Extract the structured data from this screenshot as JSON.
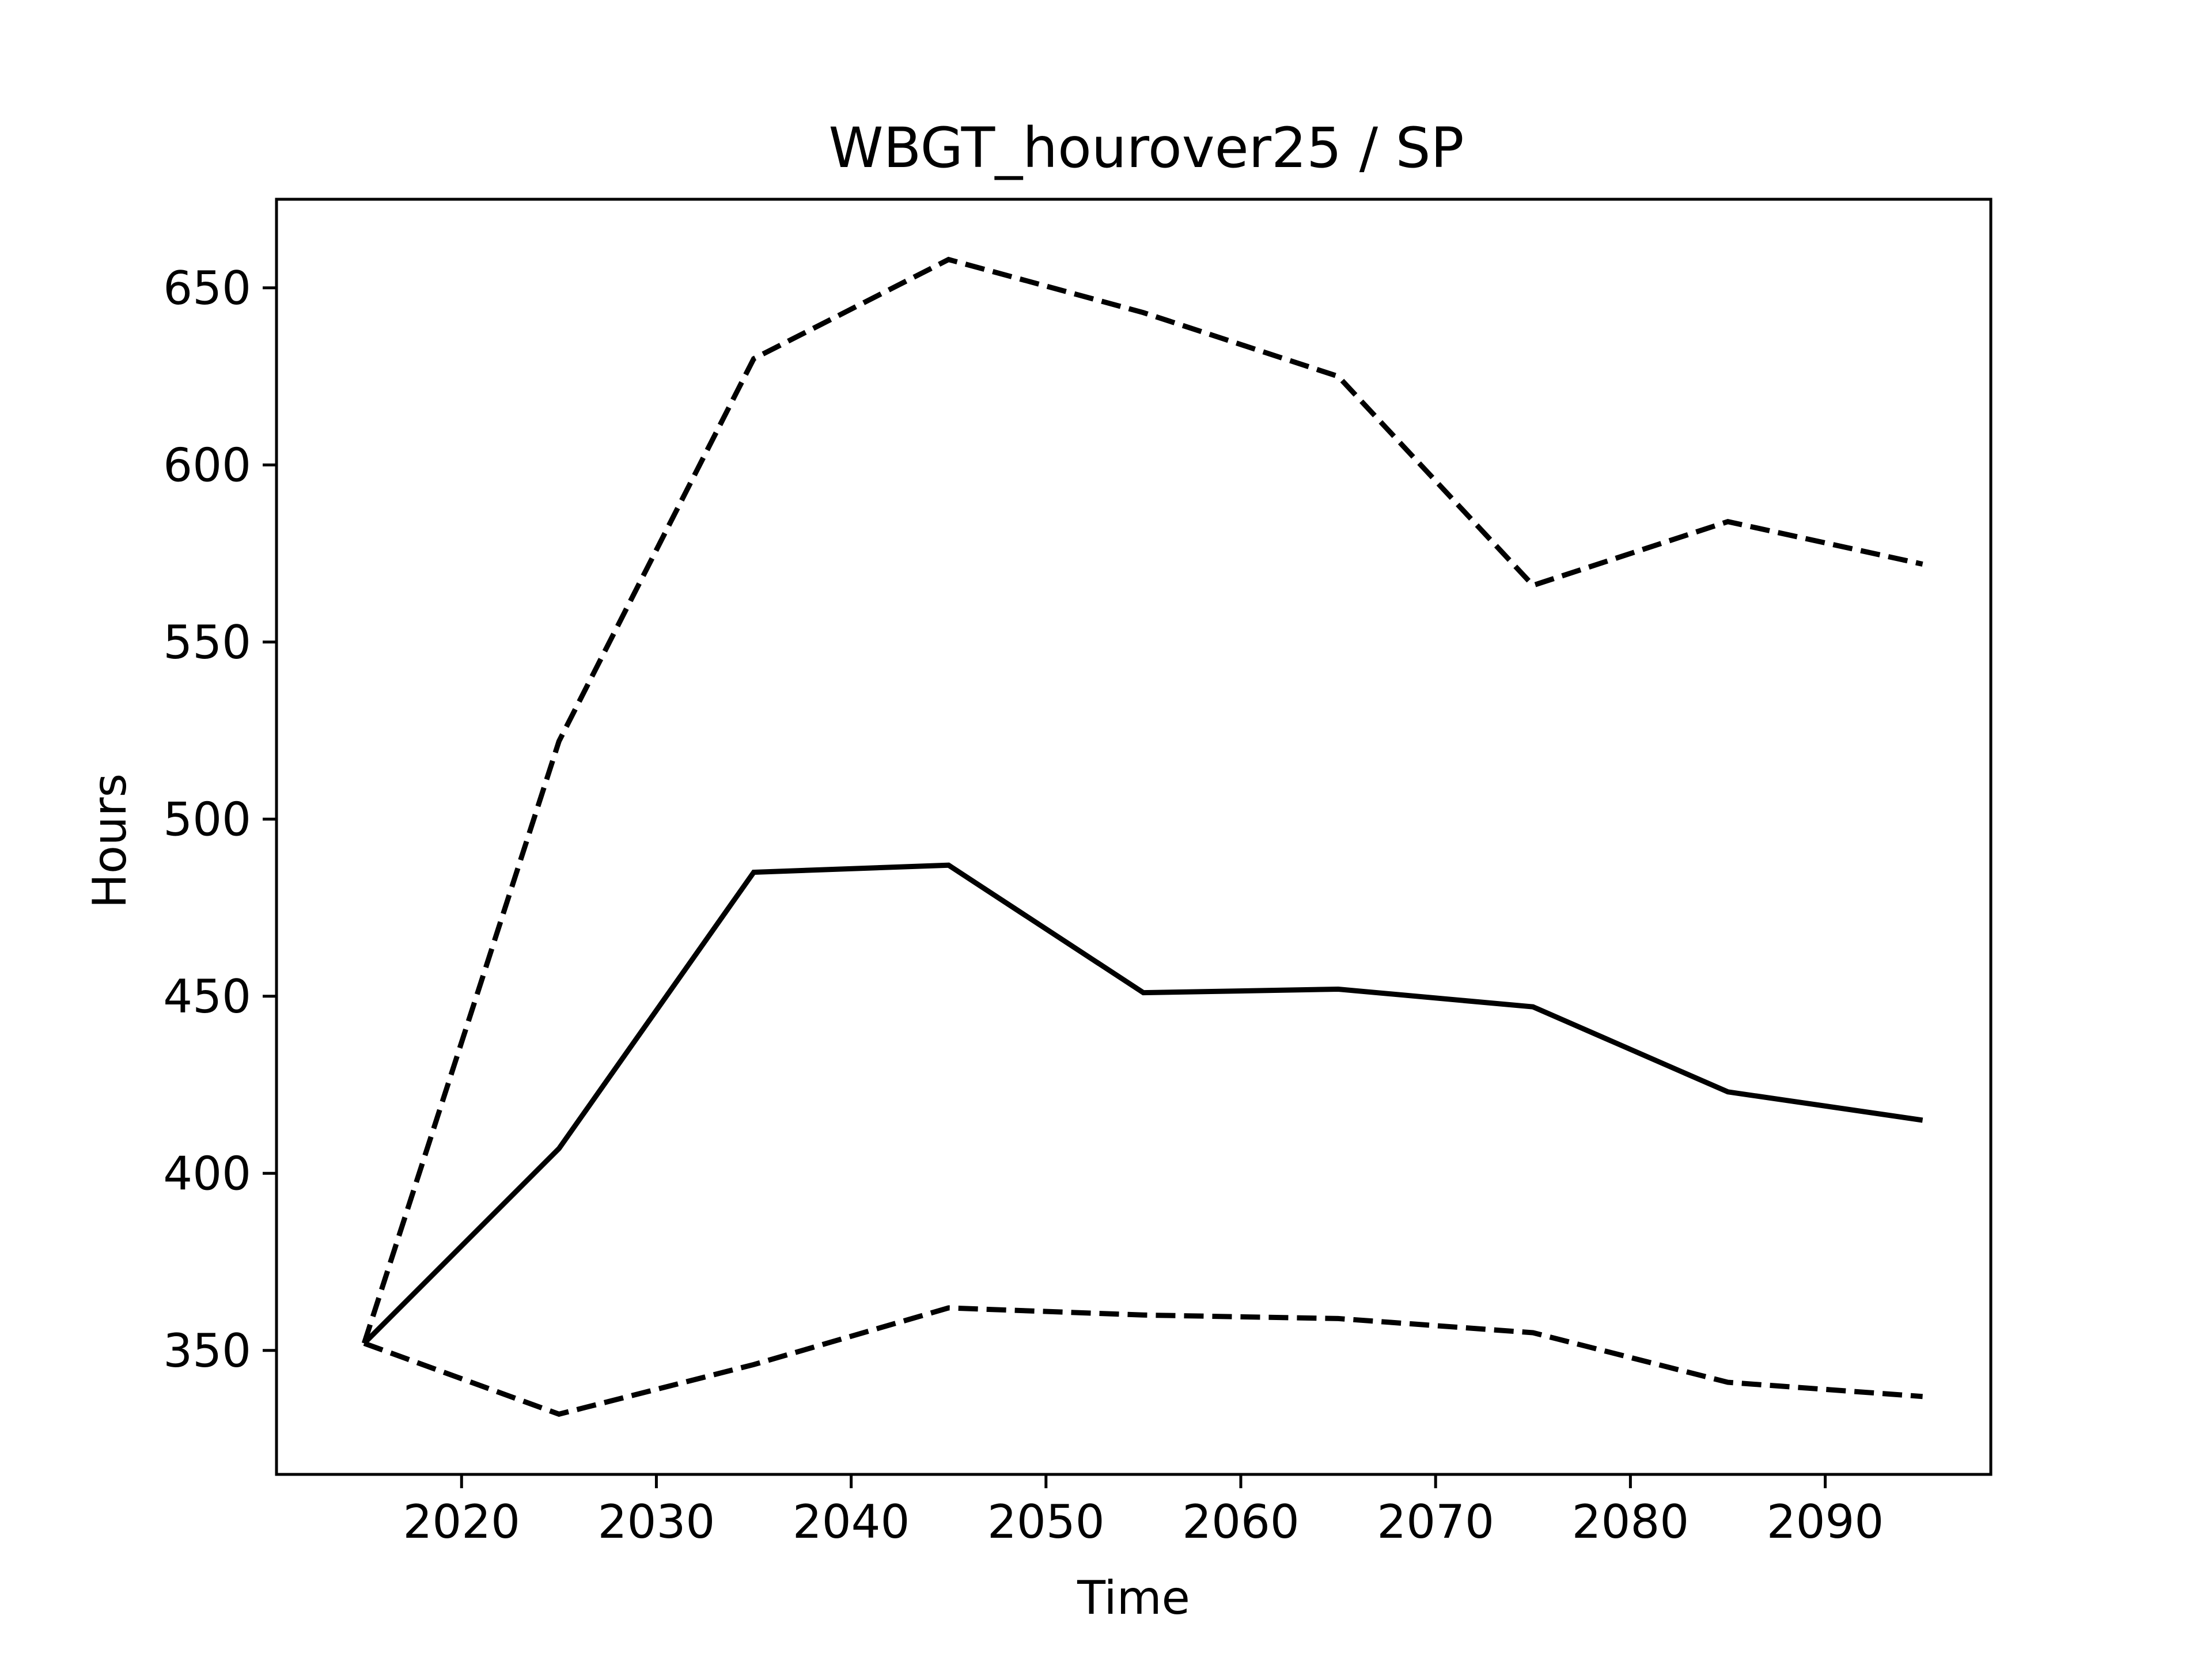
{
  "chart_data": {
    "type": "line",
    "title": "WBGT_hourover25 / SP",
    "xlabel": "Time",
    "ylabel": "Hours",
    "xlim": [
      2010.5,
      2098.5
    ],
    "ylim": [
      315,
      675
    ],
    "x_ticks": [
      2020,
      2030,
      2040,
      2050,
      2060,
      2070,
      2080,
      2090
    ],
    "y_ticks": [
      350,
      400,
      450,
      500,
      550,
      600,
      650
    ],
    "grid": false,
    "legend": "none",
    "x": [
      2015,
      2025,
      2035,
      2045,
      2055,
      2065,
      2075,
      2085,
      2095
    ],
    "series": [
      {
        "style": "dashed",
        "color": "#000000",
        "values": [
          352,
          522,
          630,
          658,
          643,
          625,
          566,
          584,
          572
        ]
      },
      {
        "style": "solid",
        "color": "#000000",
        "values": [
          352,
          407,
          485,
          487,
          451,
          452,
          447,
          423,
          415
        ]
      },
      {
        "style": "dashed",
        "color": "#000000",
        "values": [
          352,
          332,
          346,
          362,
          360,
          359,
          355,
          341,
          337
        ]
      }
    ]
  }
}
